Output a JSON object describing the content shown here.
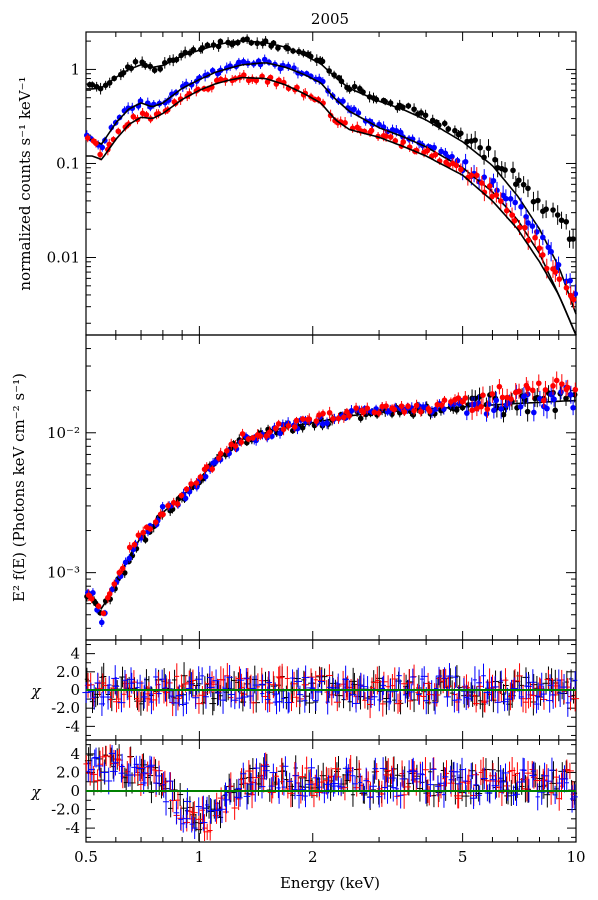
{
  "chart_data": {
    "title": "2005",
    "type": "scatter",
    "x_axis": {
      "label": "Energy (keV)",
      "scale": "log",
      "range": [
        0.5,
        10
      ],
      "tick_values": [
        0.5,
        1,
        2,
        5,
        10
      ],
      "tick_labels": [
        "0.5",
        "1",
        "2",
        "5",
        "10"
      ]
    },
    "panels": [
      {
        "id": "counts",
        "ylabel": "normalized counts s⁻¹ keV⁻¹",
        "yscale": "log",
        "ylim": [
          0.0015,
          2.5
        ],
        "tick_values": [
          0.01,
          0.1,
          1
        ],
        "tick_labels": [
          "0.01",
          "0.1",
          "1"
        ],
        "series": [
          {
            "color": "#000000",
            "x": [
              0.52,
              0.55,
              0.6,
              0.65,
              0.7,
              0.75,
              0.8,
              0.9,
              1.0,
              1.1,
              1.2,
              1.3,
              1.5,
              1.7,
              1.9,
              2.1,
              2.3,
              2.5,
              3.0,
              3.5,
              4.0,
              5.0,
              6.0,
              7.0,
              8.0,
              9.0,
              10.0
            ],
            "y": [
              0.65,
              0.66,
              0.85,
              1.05,
              1.2,
              1.0,
              1.1,
              1.4,
              1.6,
              1.8,
              1.95,
              2.0,
              1.9,
              1.7,
              1.45,
              1.2,
              0.85,
              0.65,
              0.48,
              0.4,
              0.32,
              0.2,
              0.12,
              0.07,
              0.04,
              0.025,
              0.016
            ],
            "model": [
              0.62,
              0.64,
              0.82,
              1.0,
              1.12,
              1.05,
              1.1,
              1.4,
              1.6,
              1.8,
              1.95,
              2.02,
              1.92,
              1.72,
              1.42,
              1.15,
              0.82,
              0.63,
              0.46,
              0.37,
              0.29,
              0.17,
              0.095,
              0.045,
              0.02,
              0.008,
              0.0025
            ]
          },
          {
            "color": "#0000ff",
            "x": [
              0.52,
              0.55,
              0.6,
              0.65,
              0.7,
              0.75,
              0.8,
              0.9,
              1.0,
              1.1,
              1.2,
              1.3,
              1.5,
              1.7,
              1.9,
              2.1,
              2.3,
              2.5,
              3.0,
              3.5,
              4.0,
              5.0,
              6.0,
              7.0,
              8.0,
              9.0,
              10.0
            ],
            "y": [
              0.19,
              0.15,
              0.28,
              0.4,
              0.45,
              0.42,
              0.45,
              0.65,
              0.8,
              0.95,
              1.05,
              1.15,
              1.2,
              1.05,
              0.9,
              0.75,
              0.5,
              0.38,
              0.25,
              0.2,
              0.16,
              0.1,
              0.06,
              0.035,
              0.017,
              0.008,
              0.004
            ],
            "model": [
              0.18,
              0.16,
              0.27,
              0.38,
              0.44,
              0.4,
              0.44,
              0.63,
              0.78,
              0.93,
              1.03,
              1.12,
              1.18,
              1.05,
              0.88,
              0.72,
              0.48,
              0.36,
              0.24,
              0.19,
              0.15,
              0.09,
              0.05,
              0.025,
              0.011,
              0.004,
              0.0015
            ]
          },
          {
            "color": "#ff0000",
            "x": [
              0.52,
              0.55,
              0.6,
              0.65,
              0.7,
              0.75,
              0.8,
              0.9,
              1.0,
              1.1,
              1.2,
              1.3,
              1.5,
              1.7,
              1.9,
              2.1,
              2.3,
              2.5,
              3.0,
              3.5,
              4.0,
              5.0,
              6.0,
              7.0,
              8.0,
              9.0,
              10.0
            ],
            "y": [
              0.18,
              0.12,
              0.2,
              0.28,
              0.33,
              0.3,
              0.35,
              0.5,
              0.6,
              0.72,
              0.78,
              0.82,
              0.8,
              0.68,
              0.56,
              0.45,
              0.3,
              0.24,
              0.2,
              0.16,
              0.13,
              0.085,
              0.048,
              0.025,
              0.012,
              0.006,
              0.003
            ],
            "model": [
              0.12,
              0.11,
              0.18,
              0.26,
              0.31,
              0.3,
              0.34,
              0.48,
              0.6,
              0.7,
              0.77,
              0.82,
              0.8,
              0.68,
              0.55,
              0.44,
              0.29,
              0.23,
              0.19,
              0.15,
              0.12,
              0.075,
              0.04,
              0.02,
              0.009,
              0.004,
              0.0015
            ]
          }
        ]
      },
      {
        "id": "unfolded",
        "ylabel": "E² f(E) (Photons keV cm⁻² s⁻¹)",
        "yscale": "log",
        "ylim": [
          0.00033,
          0.05
        ],
        "tick_values": [
          0.001,
          0.01
        ],
        "tick_labels": [
          "10⁻³",
          "10⁻²"
        ],
        "series": [
          {
            "color": "#000000",
            "x": [
              0.52,
              0.55,
              0.6,
              0.65,
              0.7,
              0.75,
              0.8,
              0.9,
              1.0,
              1.1,
              1.2,
              1.3,
              1.5,
              1.7,
              2.0,
              2.5,
              3.0,
              4.0,
              5.0,
              6.0,
              7.0,
              8.0,
              9.0,
              10.0
            ],
            "y": [
              0.00065,
              0.00052,
              0.0008,
              0.0012,
              0.0017,
              0.002,
              0.0026,
              0.0033,
              0.0045,
              0.006,
              0.0075,
              0.0088,
              0.0098,
              0.011,
              0.0115,
              0.013,
              0.014,
              0.0145,
              0.015,
              0.016,
              0.016,
              0.017,
              0.017,
              0.017
            ],
            "model": [
              0.00068,
              0.00055,
              0.00085,
              0.0013,
              0.0018,
              0.0021,
              0.0027,
              0.0035,
              0.0047,
              0.0062,
              0.0077,
              0.009,
              0.01,
              0.011,
              0.0118,
              0.0132,
              0.014,
              0.0148,
              0.0153,
              0.0158,
              0.0162,
              0.0165,
              0.0168,
              0.017
            ]
          },
          {
            "color": "#0000ff",
            "x": [
              0.52,
              0.55,
              0.6,
              0.65,
              0.7,
              0.75,
              0.8,
              0.9,
              1.0,
              1.1,
              1.2,
              1.3,
              1.5,
              1.7,
              2.0,
              2.5,
              3.0,
              4.0,
              5.0,
              6.0,
              7.0,
              8.0,
              9.0,
              10.0
            ],
            "y": [
              0.0007,
              0.00045,
              0.00085,
              0.0013,
              0.0019,
              0.0021,
              0.0028,
              0.0034,
              0.0046,
              0.006,
              0.0075,
              0.0088,
              0.0098,
              0.011,
              0.012,
              0.0135,
              0.0145,
              0.0148,
              0.016,
              0.016,
              0.017,
              0.016,
              0.018,
              0.018
            ]
          },
          {
            "color": "#ff0000",
            "x": [
              0.52,
              0.55,
              0.6,
              0.65,
              0.7,
              0.75,
              0.8,
              0.9,
              1.0,
              1.1,
              1.2,
              1.3,
              1.5,
              1.7,
              2.0,
              2.5,
              3.0,
              4.0,
              5.0,
              6.0,
              7.0,
              8.0,
              9.0,
              10.0
            ],
            "y": [
              0.00068,
              0.00048,
              0.0009,
              0.0014,
              0.002,
              0.0022,
              0.0027,
              0.0035,
              0.0047,
              0.0062,
              0.0078,
              0.0092,
              0.01,
              0.0115,
              0.0125,
              0.014,
              0.0145,
              0.015,
              0.017,
              0.018,
              0.019,
              0.02,
              0.021,
              0.022
            ]
          }
        ]
      },
      {
        "id": "chi1",
        "ylabel": "χ",
        "yscale": "linear",
        "ylim": [
          -5.5,
          5.5
        ],
        "tick_values": [
          4,
          2,
          0,
          -2,
          -4
        ],
        "tick_labels": [
          "4",
          "2.0",
          "0",
          "-2.0",
          "-4"
        ],
        "zero_line_color": "#008000"
      },
      {
        "id": "chi2",
        "ylabel": "χ",
        "yscale": "linear",
        "ylim": [
          -5.5,
          5.5
        ],
        "tick_values": [
          4,
          2,
          0,
          -2,
          -4
        ],
        "tick_labels": [
          "4",
          "2.0",
          "0",
          "-2.0",
          "-4"
        ],
        "zero_line_color": "#008000",
        "trend": {
          "x": [
            0.5,
            0.6,
            0.7,
            0.8,
            0.9,
            1.0,
            1.1,
            1.2,
            1.3,
            1.5,
            2.0,
            3.0,
            5.0,
            10.0
          ],
          "y": [
            2.5,
            2.6,
            2.0,
            0.5,
            -2.0,
            -3.2,
            -3.0,
            -1.0,
            0.5,
            1.3,
            1.0,
            0.9,
            0.8,
            0.7
          ]
        }
      }
    ]
  }
}
